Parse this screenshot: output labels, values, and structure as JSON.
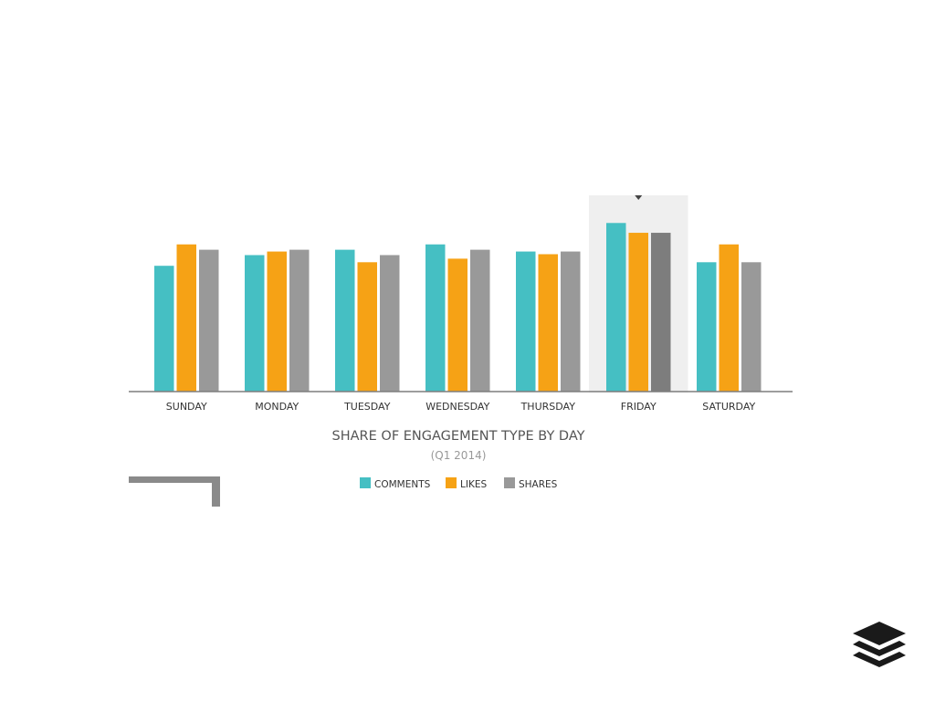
{
  "chart_data": {
    "type": "bar",
    "title": "SHARE OF ENGAGEMENT TYPE BY DAY",
    "subtitle": "(Q1 2014)",
    "categories": [
      "SUNDAY",
      "MONDAY",
      "TUESDAY",
      "WEDNESDAY",
      "THURSDAY",
      "FRIDAY",
      "SATURDAY"
    ],
    "series": [
      {
        "name": "COMMENTS",
        "color": "#45bfc3",
        "values": [
          14.1,
          15.3,
          15.9,
          16.5,
          15.7,
          18.9,
          14.5
        ]
      },
      {
        "name": "LIKES",
        "color": "#f6a215",
        "values": [
          16.5,
          15.7,
          14.5,
          14.9,
          15.4,
          17.8,
          16.5
        ]
      },
      {
        "name": "SHARES",
        "color": "#999999",
        "values": [
          15.9,
          15.9,
          15.3,
          15.9,
          15.7,
          17.8,
          14.5
        ]
      }
    ],
    "highlighted_category": "FRIDAY",
    "highlight_color": "#efefef",
    "ylim": [
      0,
      22
    ],
    "grid": false,
    "legend_position": "bottom"
  }
}
